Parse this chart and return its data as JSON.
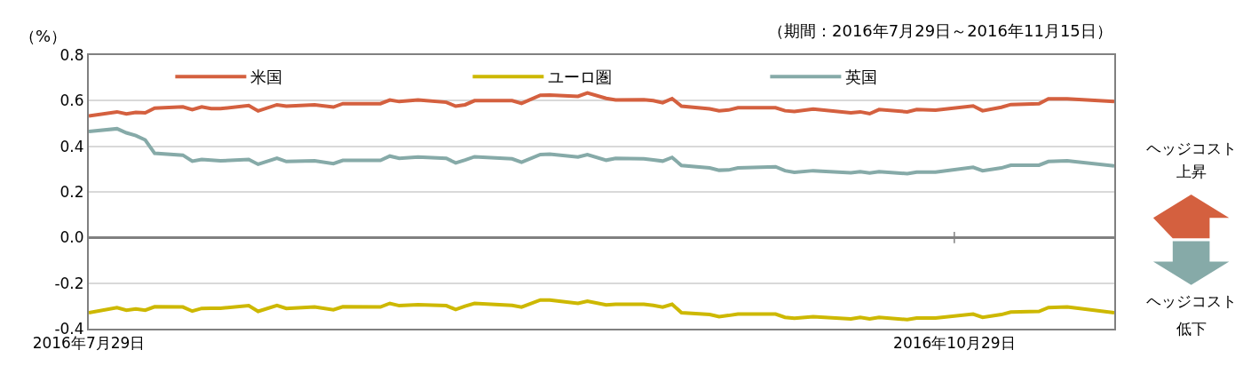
{
  "chart_data": {
    "type": "line",
    "subtitle": "（期間：2016年7月29日～2016年11月15日）",
    "ylabel": "（%）",
    "x": [
      "2016-07-29",
      "2016-08-01",
      "2016-08-02",
      "2016-08-03",
      "2016-08-04",
      "2016-08-05",
      "2016-08-08",
      "2016-08-09",
      "2016-08-10",
      "2016-08-11",
      "2016-08-12",
      "2016-08-15",
      "2016-08-16",
      "2016-08-18",
      "2016-08-19",
      "2016-08-22",
      "2016-08-24",
      "2016-08-25",
      "2016-08-29",
      "2016-08-30",
      "2016-08-31",
      "2016-09-02",
      "2016-09-05",
      "2016-09-06",
      "2016-09-07",
      "2016-09-08",
      "2016-09-12",
      "2016-09-13",
      "2016-09-15",
      "2016-09-16",
      "2016-09-19",
      "2016-09-20",
      "2016-09-22",
      "2016-09-23",
      "2016-09-26",
      "2016-09-27",
      "2016-09-28",
      "2016-09-29",
      "2016-09-30",
      "2016-10-03",
      "2016-10-04",
      "2016-10-05",
      "2016-10-06",
      "2016-10-10",
      "2016-10-11",
      "2016-10-12",
      "2016-10-14",
      "2016-10-18",
      "2016-10-19",
      "2016-10-20",
      "2016-10-21",
      "2016-10-24",
      "2016-10-25",
      "2016-10-27",
      "2016-10-31",
      "2016-11-01",
      "2016-11-03",
      "2016-11-04",
      "2016-11-07",
      "2016-11-08",
      "2016-11-10",
      "2016-11-15"
    ],
    "series": [
      {
        "name": "米国",
        "color": "#d4603f",
        "values": [
          0.533,
          0.551,
          0.542,
          0.549,
          0.547,
          0.567,
          0.573,
          0.561,
          0.573,
          0.565,
          0.565,
          0.579,
          0.555,
          0.582,
          0.576,
          0.582,
          0.572,
          0.587,
          0.587,
          0.603,
          0.596,
          0.603,
          0.593,
          0.576,
          0.582,
          0.6,
          0.6,
          0.588,
          0.624,
          0.625,
          0.619,
          0.634,
          0.61,
          0.603,
          0.604,
          0.6,
          0.591,
          0.609,
          0.576,
          0.564,
          0.556,
          0.559,
          0.569,
          0.569,
          0.556,
          0.553,
          0.563,
          0.547,
          0.551,
          0.543,
          0.561,
          0.551,
          0.561,
          0.558,
          0.577,
          0.556,
          0.571,
          0.583,
          0.587,
          0.608,
          0.608,
          0.596
        ]
      },
      {
        "name": "ユーロ圏",
        "color": "#cdb800",
        "values": [
          -0.33,
          -0.308,
          -0.319,
          -0.313,
          -0.319,
          -0.304,
          -0.305,
          -0.323,
          -0.311,
          -0.31,
          -0.31,
          -0.299,
          -0.324,
          -0.298,
          -0.311,
          -0.305,
          -0.317,
          -0.304,
          -0.305,
          -0.289,
          -0.299,
          -0.295,
          -0.299,
          -0.316,
          -0.301,
          -0.289,
          -0.298,
          -0.305,
          -0.274,
          -0.274,
          -0.289,
          -0.279,
          -0.296,
          -0.293,
          -0.293,
          -0.298,
          -0.305,
          -0.293,
          -0.33,
          -0.338,
          -0.347,
          -0.342,
          -0.336,
          -0.336,
          -0.35,
          -0.354,
          -0.347,
          -0.357,
          -0.35,
          -0.357,
          -0.35,
          -0.36,
          -0.353,
          -0.353,
          -0.336,
          -0.35,
          -0.338,
          -0.327,
          -0.324,
          -0.307,
          -0.305,
          -0.33
        ]
      },
      {
        "name": "英国",
        "color": "#86aaa8",
        "values": [
          0.465,
          0.477,
          0.459,
          0.447,
          0.428,
          0.369,
          0.361,
          0.335,
          0.342,
          0.339,
          0.336,
          0.342,
          0.321,
          0.348,
          0.333,
          0.336,
          0.324,
          0.338,
          0.338,
          0.357,
          0.347,
          0.353,
          0.347,
          0.327,
          0.34,
          0.354,
          0.345,
          0.33,
          0.364,
          0.366,
          0.353,
          0.363,
          0.339,
          0.347,
          0.345,
          0.34,
          0.335,
          0.351,
          0.316,
          0.305,
          0.295,
          0.296,
          0.305,
          0.31,
          0.293,
          0.286,
          0.293,
          0.284,
          0.289,
          0.283,
          0.289,
          0.28,
          0.287,
          0.287,
          0.308,
          0.293,
          0.305,
          0.317,
          0.317,
          0.333,
          0.336,
          0.314
        ]
      }
    ],
    "xlim": [
      "2016-07-29",
      "2016-11-15"
    ],
    "xticks": [
      {
        "value": "2016-07-29",
        "label": "2016年7月29日"
      },
      {
        "value": "2016-10-29",
        "label": "2016年10月29日"
      }
    ],
    "ylim": [
      -0.4,
      0.8
    ],
    "yticks": [
      -0.4,
      -0.2,
      {
        "value": 0,
        "label": "0.0"
      },
      0.2,
      0.4,
      0.6,
      0.8
    ],
    "grid": "y",
    "legend": "top left",
    "marker": "none",
    "line_style": "solid",
    "annotations": [
      "ヘッジコスト",
      "上昇",
      "ヘッジコスト",
      "低下"
    ]
  }
}
